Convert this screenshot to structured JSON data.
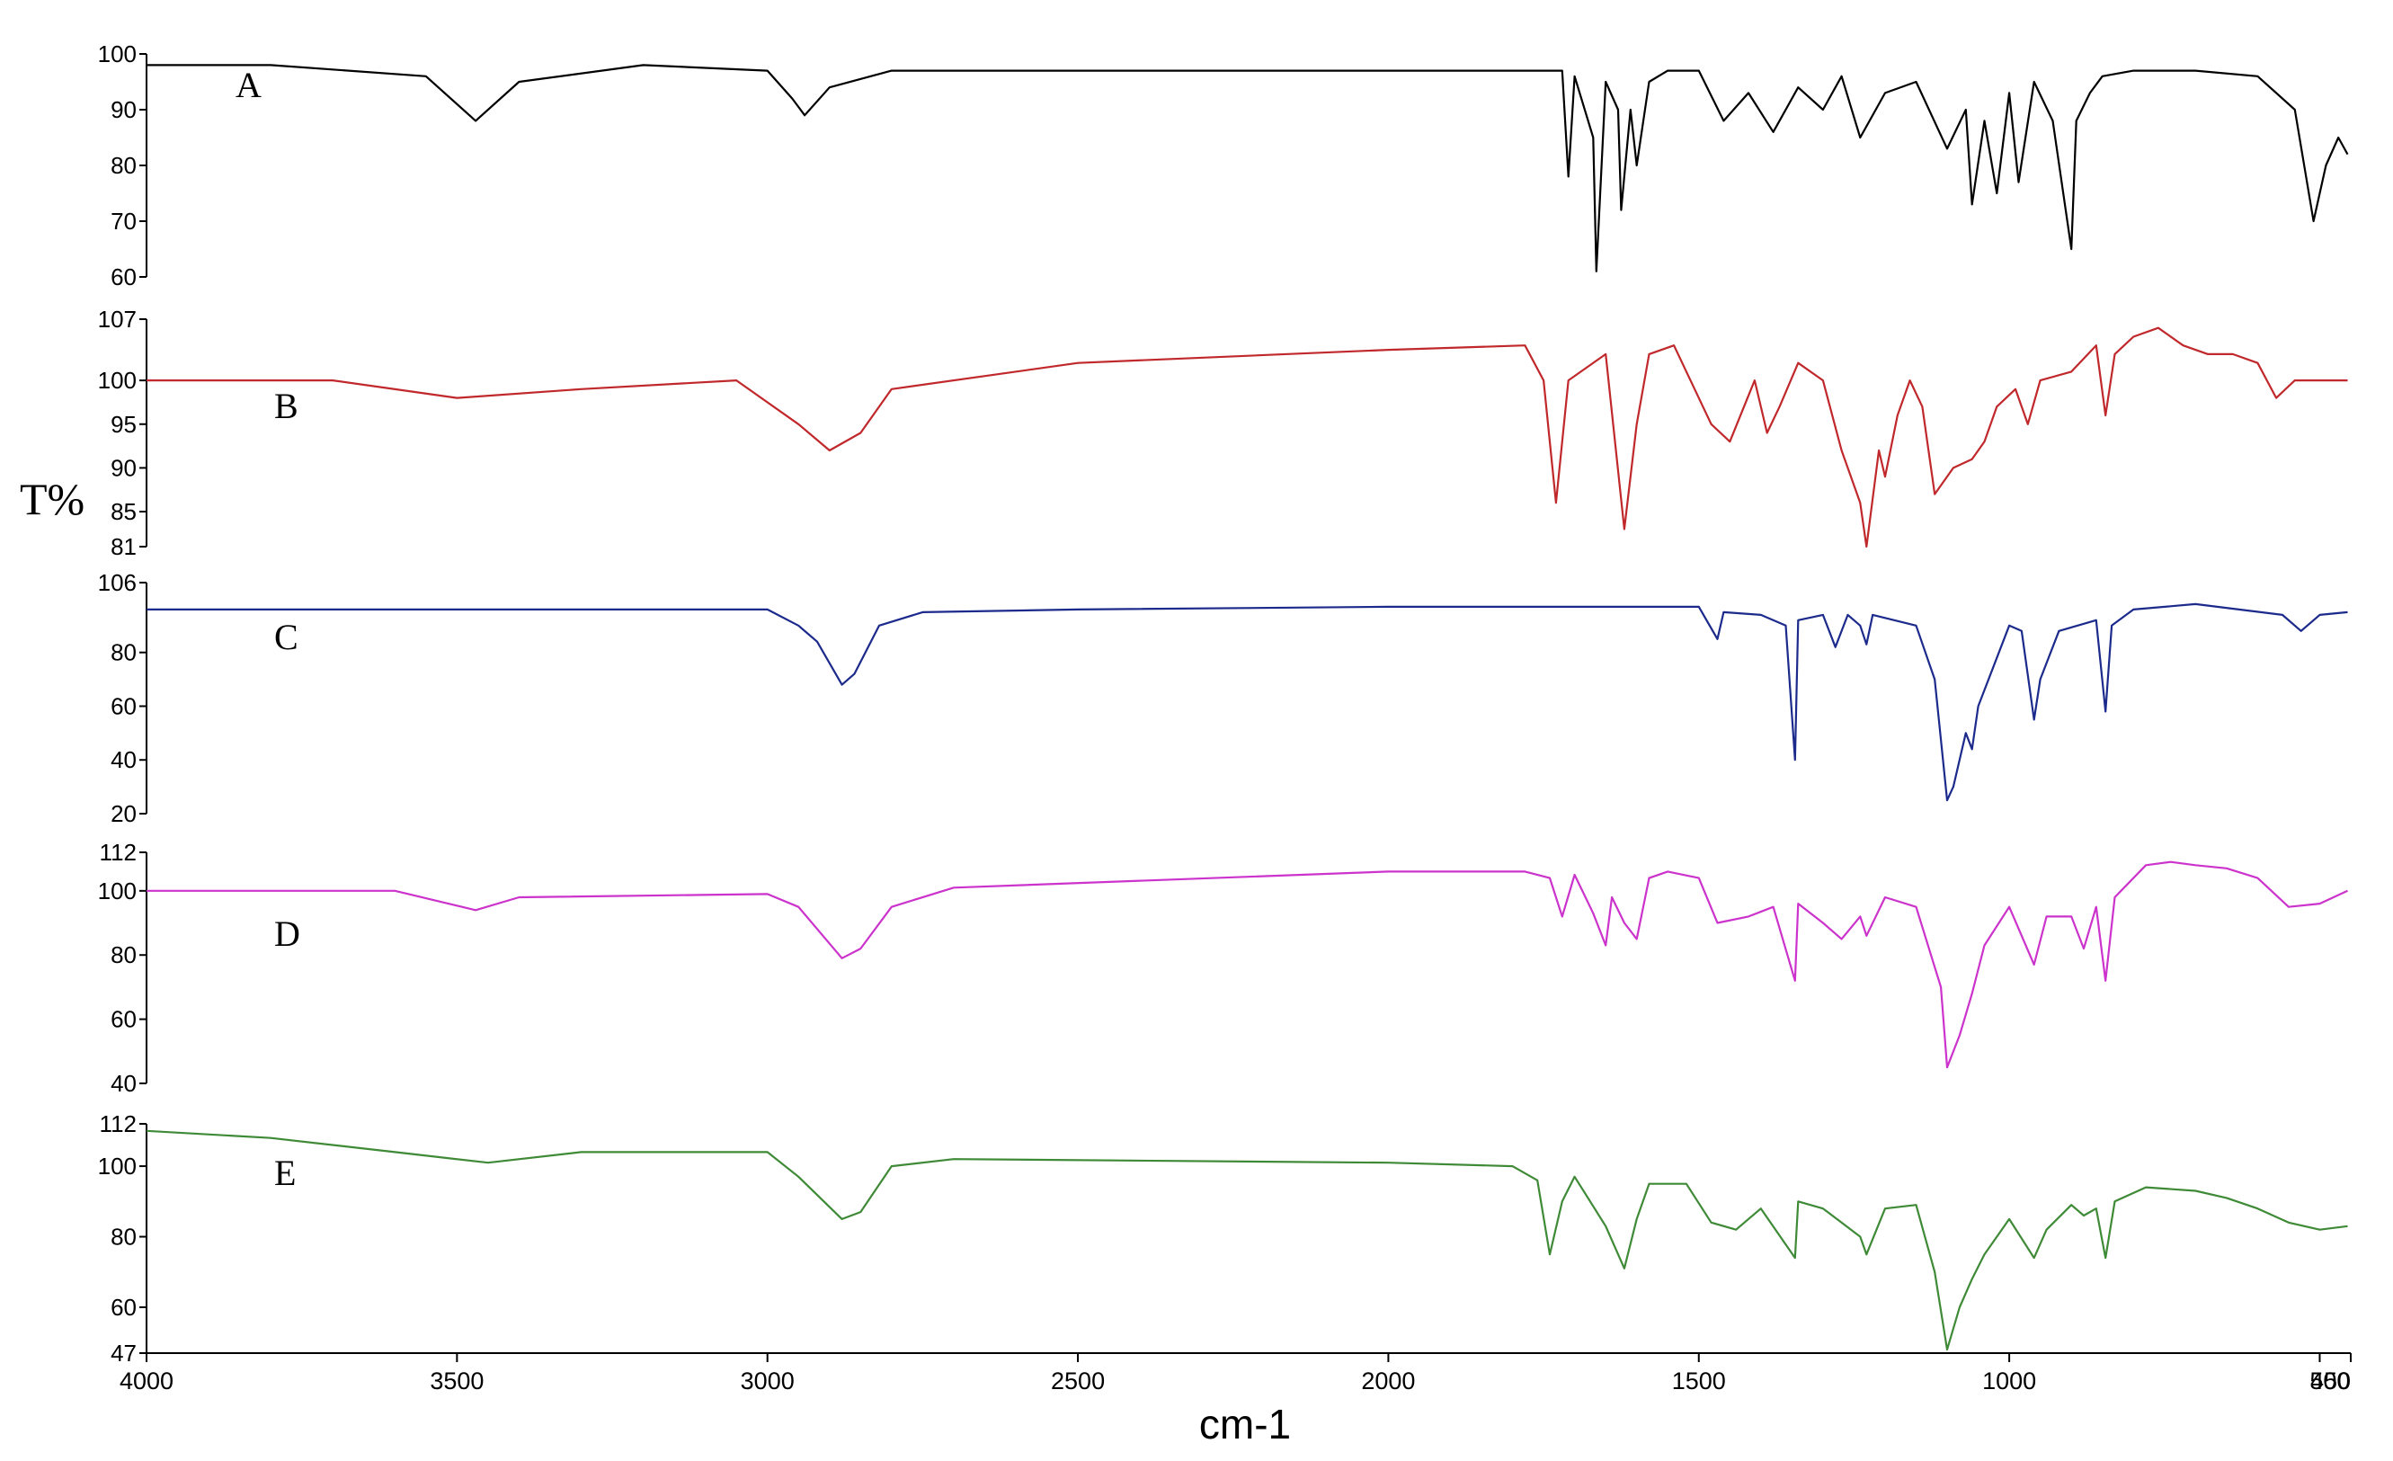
{
  "chart_data": {
    "type": "line",
    "xlabel": "cm-1",
    "ylabel": "T%",
    "xlim": [
      4000,
      450
    ],
    "x_ticks": [
      4000,
      3500,
      3000,
      2500,
      2000,
      1500,
      1000,
      500,
      450
    ],
    "x_tick_labels": [
      "4000",
      "3500",
      "3000",
      "2500",
      "2000",
      "1500",
      "1000",
      "500",
      "450"
    ],
    "grid": false,
    "panels": [
      {
        "name": "A",
        "color": "#000000",
        "ylim": [
          60,
          100
        ],
        "y_ticks": [
          60,
          70,
          80,
          90,
          100
        ],
        "baseline": 98,
        "points": [
          [
            4000,
            98
          ],
          [
            3800,
            98
          ],
          [
            3550,
            96
          ],
          [
            3470,
            88
          ],
          [
            3400,
            95
          ],
          [
            3200,
            98
          ],
          [
            3000,
            97
          ],
          [
            2960,
            92
          ],
          [
            2940,
            89
          ],
          [
            2900,
            94
          ],
          [
            2800,
            97
          ],
          [
            2000,
            97
          ],
          [
            1720,
            97
          ],
          [
            1710,
            78
          ],
          [
            1700,
            96
          ],
          [
            1670,
            85
          ],
          [
            1665,
            61
          ],
          [
            1650,
            95
          ],
          [
            1630,
            90
          ],
          [
            1625,
            72
          ],
          [
            1610,
            90
          ],
          [
            1600,
            80
          ],
          [
            1580,
            95
          ],
          [
            1550,
            97
          ],
          [
            1500,
            97
          ],
          [
            1460,
            88
          ],
          [
            1420,
            93
          ],
          [
            1380,
            86
          ],
          [
            1340,
            94
          ],
          [
            1300,
            90
          ],
          [
            1270,
            96
          ],
          [
            1240,
            85
          ],
          [
            1200,
            93
          ],
          [
            1150,
            95
          ],
          [
            1100,
            83
          ],
          [
            1070,
            90
          ],
          [
            1060,
            73
          ],
          [
            1040,
            88
          ],
          [
            1020,
            75
          ],
          [
            1000,
            93
          ],
          [
            985,
            77
          ],
          [
            960,
            95
          ],
          [
            930,
            88
          ],
          [
            900,
            65
          ],
          [
            892,
            88
          ],
          [
            870,
            93
          ],
          [
            850,
            96
          ],
          [
            800,
            97
          ],
          [
            700,
            97
          ],
          [
            600,
            96
          ],
          [
            540,
            90
          ],
          [
            510,
            70
          ],
          [
            490,
            80
          ],
          [
            470,
            85
          ],
          [
            455,
            82
          ]
        ]
      },
      {
        "name": "B",
        "color": "#c0282b",
        "ylim": [
          81,
          107
        ],
        "y_ticks": [
          81,
          85,
          90,
          95,
          100,
          107
        ],
        "baseline": 100,
        "points": [
          [
            4000,
            100
          ],
          [
            3700,
            100
          ],
          [
            3500,
            98
          ],
          [
            3300,
            99
          ],
          [
            3050,
            100
          ],
          [
            2950,
            95
          ],
          [
            2900,
            92
          ],
          [
            2850,
            94
          ],
          [
            2800,
            99
          ],
          [
            2500,
            102
          ],
          [
            2000,
            103.5
          ],
          [
            1780,
            104
          ],
          [
            1750,
            100
          ],
          [
            1730,
            86
          ],
          [
            1710,
            100
          ],
          [
            1650,
            103
          ],
          [
            1620,
            83
          ],
          [
            1600,
            95
          ],
          [
            1580,
            103
          ],
          [
            1540,
            104
          ],
          [
            1480,
            95
          ],
          [
            1450,
            93
          ],
          [
            1410,
            100
          ],
          [
            1390,
            94
          ],
          [
            1370,
            97
          ],
          [
            1340,
            102
          ],
          [
            1300,
            100
          ],
          [
            1270,
            92
          ],
          [
            1240,
            86
          ],
          [
            1230,
            81
          ],
          [
            1210,
            92
          ],
          [
            1200,
            89
          ],
          [
            1180,
            96
          ],
          [
            1160,
            100
          ],
          [
            1140,
            97
          ],
          [
            1120,
            87
          ],
          [
            1090,
            90
          ],
          [
            1060,
            91
          ],
          [
            1040,
            93
          ],
          [
            1020,
            97
          ],
          [
            990,
            99
          ],
          [
            970,
            95
          ],
          [
            950,
            100
          ],
          [
            900,
            101
          ],
          [
            860,
            104
          ],
          [
            845,
            96
          ],
          [
            830,
            103
          ],
          [
            800,
            105
          ],
          [
            760,
            106
          ],
          [
            720,
            104
          ],
          [
            680,
            103
          ],
          [
            640,
            103
          ],
          [
            600,
            102
          ],
          [
            570,
            98
          ],
          [
            540,
            100
          ],
          [
            500,
            100
          ],
          [
            455,
            100
          ]
        ]
      },
      {
        "name": "C",
        "color": "#1c2a8c",
        "ylim": [
          20,
          106
        ],
        "y_ticks": [
          20,
          40,
          60,
          80,
          106
        ],
        "baseline": 96,
        "points": [
          [
            4000,
            96
          ],
          [
            3200,
            96
          ],
          [
            3000,
            96
          ],
          [
            2950,
            90
          ],
          [
            2920,
            84
          ],
          [
            2880,
            68
          ],
          [
            2860,
            72
          ],
          [
            2820,
            90
          ],
          [
            2750,
            95
          ],
          [
            2500,
            96
          ],
          [
            2000,
            97
          ],
          [
            1500,
            97
          ],
          [
            1470,
            85
          ],
          [
            1460,
            95
          ],
          [
            1400,
            94
          ],
          [
            1360,
            90
          ],
          [
            1345,
            40
          ],
          [
            1340,
            92
          ],
          [
            1300,
            94
          ],
          [
            1280,
            82
          ],
          [
            1260,
            94
          ],
          [
            1240,
            90
          ],
          [
            1230,
            83
          ],
          [
            1220,
            94
          ],
          [
            1150,
            90
          ],
          [
            1120,
            70
          ],
          [
            1100,
            25
          ],
          [
            1090,
            30
          ],
          [
            1070,
            50
          ],
          [
            1060,
            44
          ],
          [
            1050,
            60
          ],
          [
            1000,
            90
          ],
          [
            980,
            88
          ],
          [
            960,
            55
          ],
          [
            950,
            70
          ],
          [
            920,
            88
          ],
          [
            860,
            92
          ],
          [
            845,
            58
          ],
          [
            835,
            90
          ],
          [
            800,
            96
          ],
          [
            700,
            98
          ],
          [
            560,
            94
          ],
          [
            530,
            88
          ],
          [
            500,
            94
          ],
          [
            455,
            95
          ]
        ]
      },
      {
        "name": "D",
        "color": "#cc33cc",
        "ylim": [
          40,
          112
        ],
        "y_ticks": [
          40,
          60,
          80,
          100,
          112
        ],
        "baseline": 100,
        "points": [
          [
            4000,
            100
          ],
          [
            3600,
            100
          ],
          [
            3470,
            94
          ],
          [
            3400,
            98
          ],
          [
            3000,
            99
          ],
          [
            2950,
            95
          ],
          [
            2880,
            79
          ],
          [
            2850,
            82
          ],
          [
            2800,
            95
          ],
          [
            2700,
            101
          ],
          [
            2000,
            106
          ],
          [
            1780,
            106
          ],
          [
            1740,
            104
          ],
          [
            1720,
            92
          ],
          [
            1700,
            105
          ],
          [
            1670,
            93
          ],
          [
            1650,
            83
          ],
          [
            1640,
            98
          ],
          [
            1620,
            90
          ],
          [
            1600,
            85
          ],
          [
            1580,
            104
          ],
          [
            1550,
            106
          ],
          [
            1500,
            104
          ],
          [
            1470,
            90
          ],
          [
            1420,
            92
          ],
          [
            1380,
            95
          ],
          [
            1345,
            72
          ],
          [
            1340,
            96
          ],
          [
            1300,
            90
          ],
          [
            1270,
            85
          ],
          [
            1240,
            92
          ],
          [
            1230,
            86
          ],
          [
            1200,
            98
          ],
          [
            1150,
            95
          ],
          [
            1110,
            70
          ],
          [
            1100,
            45
          ],
          [
            1080,
            55
          ],
          [
            1060,
            68
          ],
          [
            1040,
            83
          ],
          [
            1000,
            95
          ],
          [
            960,
            77
          ],
          [
            940,
            92
          ],
          [
            900,
            92
          ],
          [
            880,
            82
          ],
          [
            860,
            95
          ],
          [
            845,
            72
          ],
          [
            830,
            98
          ],
          [
            780,
            108
          ],
          [
            740,
            109
          ],
          [
            700,
            108
          ],
          [
            650,
            107
          ],
          [
            600,
            104
          ],
          [
            550,
            95
          ],
          [
            500,
            96
          ],
          [
            455,
            100
          ]
        ]
      },
      {
        "name": "E",
        "color": "#3f8a37",
        "ylim": [
          47,
          112
        ],
        "y_ticks": [
          47,
          60,
          80,
          100,
          112
        ],
        "baseline": 100,
        "points": [
          [
            4000,
            110
          ],
          [
            3800,
            108
          ],
          [
            3600,
            104
          ],
          [
            3450,
            101
          ],
          [
            3300,
            104
          ],
          [
            3000,
            104
          ],
          [
            2950,
            97
          ],
          [
            2880,
            85
          ],
          [
            2850,
            87
          ],
          [
            2800,
            100
          ],
          [
            2700,
            102
          ],
          [
            2000,
            101
          ],
          [
            1800,
            100
          ],
          [
            1760,
            96
          ],
          [
            1740,
            75
          ],
          [
            1720,
            90
          ],
          [
            1700,
            97
          ],
          [
            1650,
            83
          ],
          [
            1620,
            71
          ],
          [
            1600,
            85
          ],
          [
            1580,
            95
          ],
          [
            1520,
            95
          ],
          [
            1480,
            84
          ],
          [
            1440,
            82
          ],
          [
            1400,
            88
          ],
          [
            1345,
            74
          ],
          [
            1340,
            90
          ],
          [
            1300,
            88
          ],
          [
            1240,
            80
          ],
          [
            1230,
            75
          ],
          [
            1200,
            88
          ],
          [
            1150,
            89
          ],
          [
            1120,
            70
          ],
          [
            1100,
            48
          ],
          [
            1080,
            60
          ],
          [
            1060,
            68
          ],
          [
            1040,
            75
          ],
          [
            1000,
            85
          ],
          [
            960,
            74
          ],
          [
            940,
            82
          ],
          [
            900,
            89
          ],
          [
            880,
            86
          ],
          [
            860,
            88
          ],
          [
            845,
            74
          ],
          [
            830,
            90
          ],
          [
            780,
            94
          ],
          [
            700,
            93
          ],
          [
            650,
            91
          ],
          [
            600,
            88
          ],
          [
            550,
            84
          ],
          [
            500,
            82
          ],
          [
            455,
            83
          ]
        ]
      }
    ]
  }
}
